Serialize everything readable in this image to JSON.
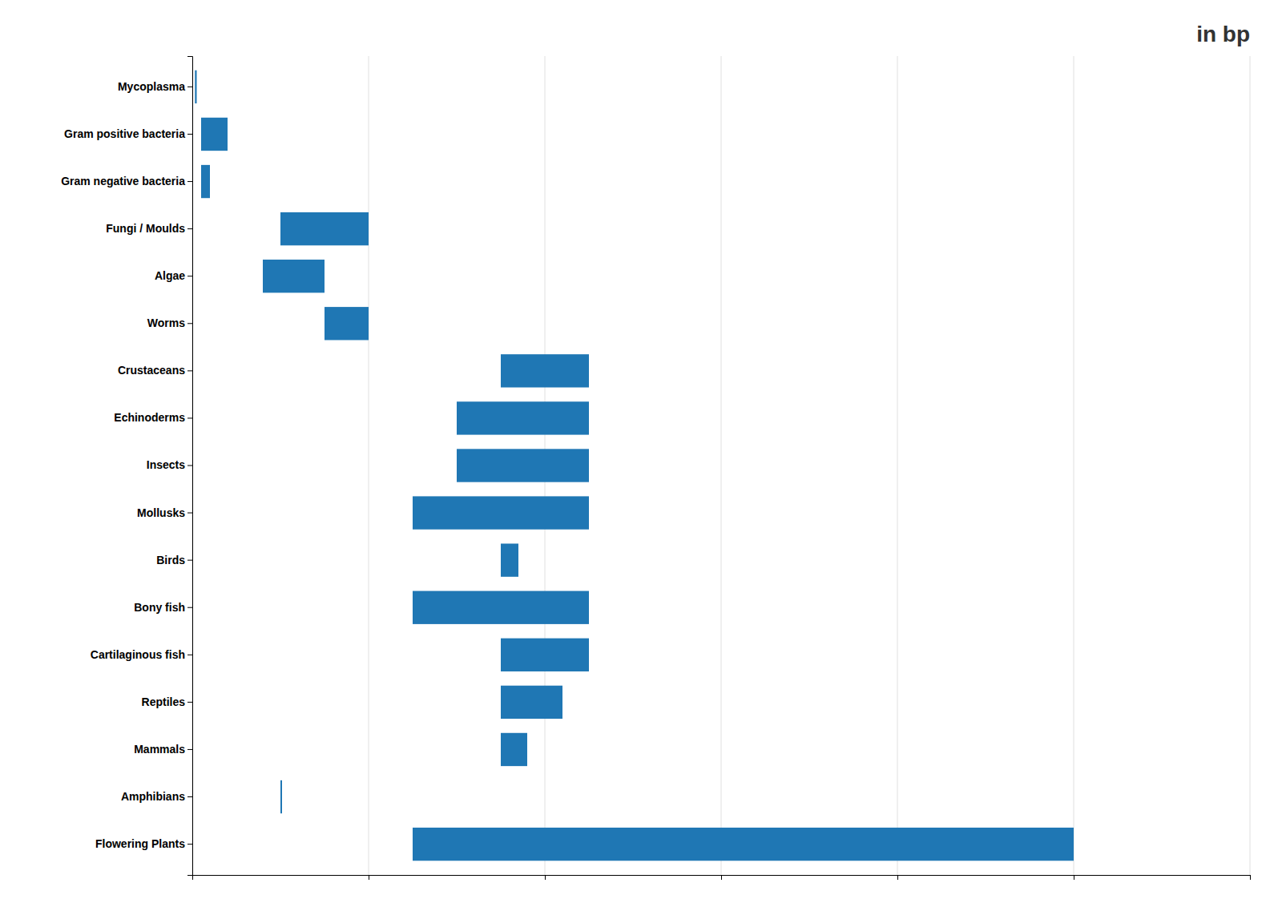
{
  "chart_data": {
    "type": "bar",
    "title": "in bp",
    "orientation": "horizontal",
    "categories": [
      "Mycoplasma",
      "Gram positive bacteria",
      "Gram negative bacteria",
      "Fungi / Moulds",
      "Algae",
      "Worms",
      "Crustaceans",
      "Echinoderms",
      "Insects",
      "Mollusks",
      "Birds",
      "Bony fish",
      "Cartilaginous fish",
      "Reptiles",
      "Mammals",
      "Amphibians",
      "Flowering Plants"
    ],
    "values": [
      [
        300000000,
        500000000
      ],
      [
        1000000000,
        4000000000
      ],
      [
        1000000000,
        2000000000
      ],
      [
        10000000000,
        20000000000
      ],
      [
        8000000000,
        15000000000
      ],
      [
        15000000000,
        20000000000
      ],
      [
        35000000000,
        45000000000
      ],
      [
        30000000000,
        45000000000
      ],
      [
        30000000000,
        45000000000
      ],
      [
        25000000000,
        45000000000
      ],
      [
        35000000000,
        37000000000
      ],
      [
        25000000000,
        45000000000
      ],
      [
        35000000000,
        45000000000
      ],
      [
        35000000000,
        42000000000
      ],
      [
        35000000000,
        38000000000
      ],
      [
        10000000000,
        10000000000
      ],
      [
        25000000000,
        100000000000
      ]
    ],
    "xlim": [
      0,
      120000000000
    ],
    "xticks": [
      0,
      20000000000,
      40000000000,
      60000000000,
      80000000000,
      100000000000,
      120000000000
    ],
    "grid": true,
    "tick_labels": "y"
  }
}
